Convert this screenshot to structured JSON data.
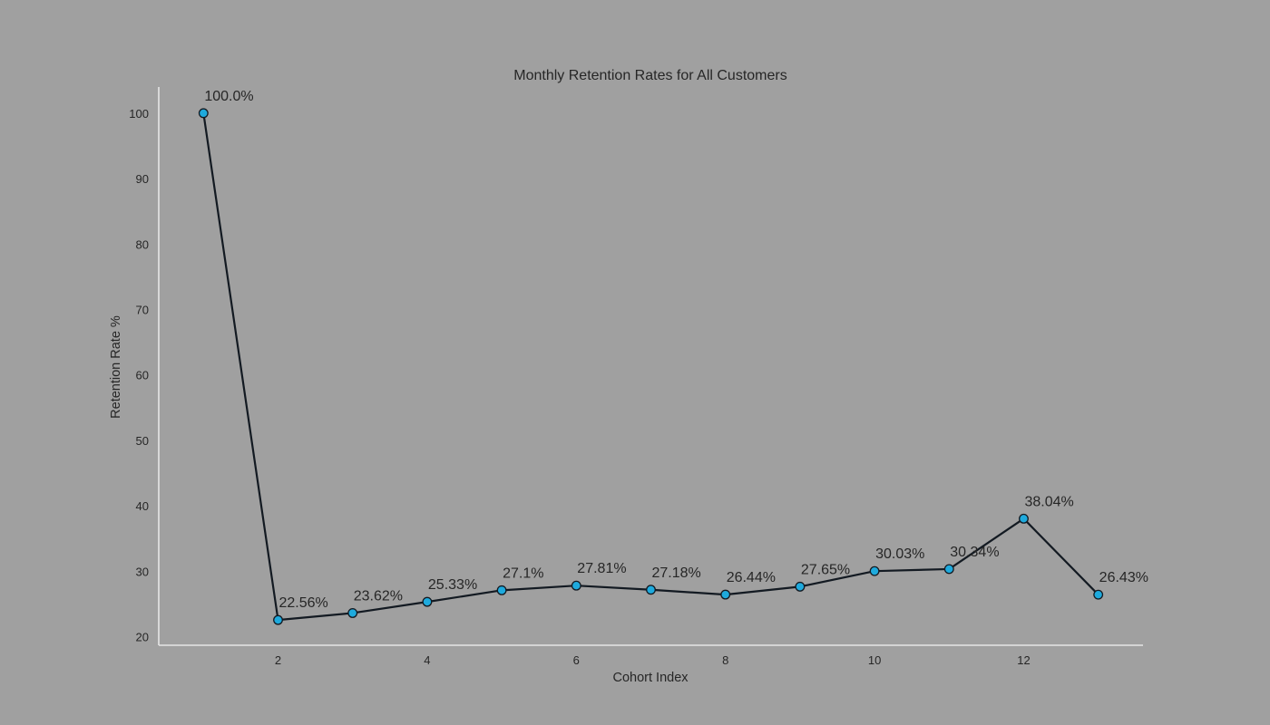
{
  "chart_data": {
    "type": "line",
    "title": "Monthly Retention Rates for All Customers",
    "xlabel": "Cohort Index",
    "ylabel": "Retention Rate %",
    "x": [
      1,
      2,
      3,
      4,
      5,
      6,
      7,
      8,
      9,
      10,
      11,
      12,
      13
    ],
    "values": [
      100.0,
      22.56,
      23.62,
      25.33,
      27.1,
      27.81,
      27.18,
      26.44,
      27.65,
      30.03,
      30.34,
      38.04,
      26.43
    ],
    "data_labels": [
      "100.0%",
      "22.56%",
      "23.62%",
      "25.33%",
      "27.1%",
      "27.81%",
      "27.18%",
      "26.44%",
      "27.65%",
      "30.03%",
      "30.34%",
      "38.04%",
      "26.43%"
    ],
    "xticks": [
      2,
      4,
      6,
      8,
      10,
      12
    ],
    "yticks": [
      20,
      30,
      40,
      50,
      60,
      70,
      80,
      90,
      100
    ],
    "xlim": [
      0.4,
      13.6
    ],
    "ylim": [
      18.7,
      104
    ],
    "grid": false,
    "colors": {
      "background": "#a0a0a0",
      "line": "#131a22",
      "marker_fill": "#1eaadd",
      "text": "#262626",
      "spine": "#e6e6e6"
    }
  }
}
